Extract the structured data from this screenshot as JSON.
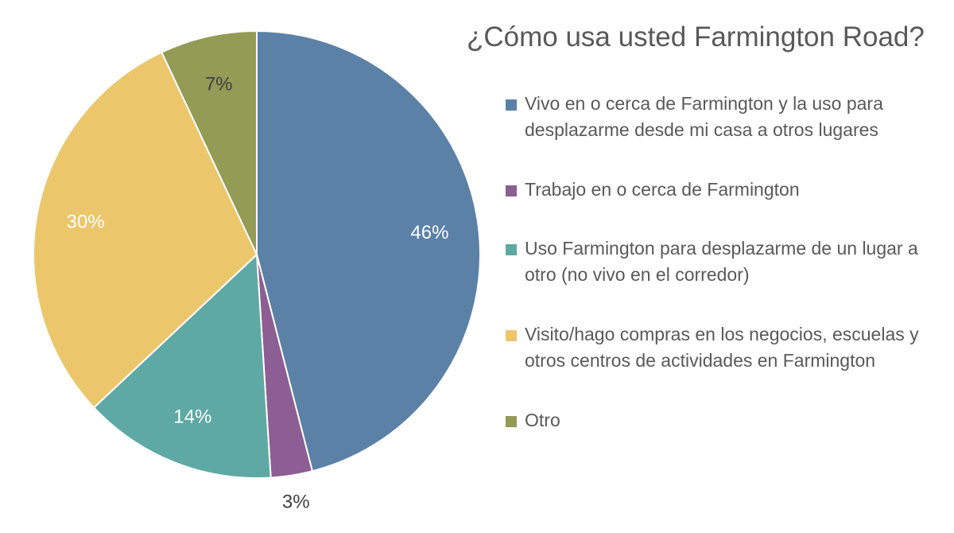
{
  "chart_data": {
    "type": "pie",
    "title": "¿Cómo usa usted Farmington Road?",
    "start_angle_deg": 0,
    "direction": "clockwise",
    "legend_position": "right",
    "slices": [
      {
        "label": "Vivo en o cerca de Farmington y la uso para desplazarme desde mi casa a otros lugares",
        "value": 46,
        "display": "46%",
        "color": "#5b81a7",
        "label_color": "#ffffff"
      },
      {
        "label": "Trabajo en o cerca de Farmington",
        "value": 3,
        "display": "3%",
        "color": "#8c5e93",
        "label_color": "#404040"
      },
      {
        "label": "Uso Farmington para desplazarme de un lugar a otro (no vivo en el corredor)",
        "value": 14,
        "display": "14%",
        "color": "#5ea9a3",
        "label_color": "#ffffff"
      },
      {
        "label": "Visito/hago compras en los negocios, escuelas y otros centros de actividades en Farmington",
        "value": 30,
        "display": "30%",
        "color": "#ebc66b",
        "label_color": "#ffffff"
      },
      {
        "label": "Otro",
        "value": 7,
        "display": "7%",
        "color": "#939b55",
        "label_color": "#404040"
      }
    ]
  }
}
